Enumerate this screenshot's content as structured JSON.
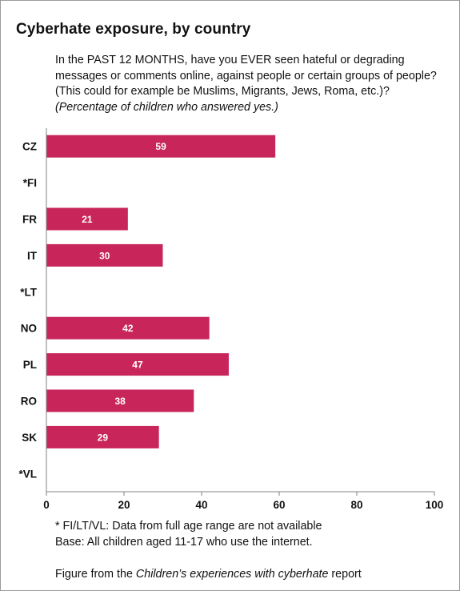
{
  "title": "Cyberhate exposure, by country",
  "question_lines": [
    "In the PAST 12 MONTHS, have you EVER seen hateful or degrading",
    "messages or comments online, against people or certain groups of people?",
    "(This could for example be Muslims, Migrants, Jews, Roma, etc.)?"
  ],
  "question_note": "(Percentage of children who answered yes.)",
  "footnote_lines": [
    "* FI/LT/VL: Data from full age range are not available",
    "Base: All children aged 11-17 who use the internet."
  ],
  "source_prefix": "Figure from the ",
  "source_italic": "Children’s experiences with cyberhate",
  "source_suffix": " report",
  "colors": {
    "bar": "#c8265a",
    "bar_label": "#ffffff",
    "axis": "#808080",
    "text": "#111111"
  },
  "chart_data": {
    "type": "bar",
    "orientation": "horizontal",
    "categories": [
      "CZ",
      "*FI",
      "FR",
      "IT",
      "*LT",
      "NO",
      "PL",
      "RO",
      "SK",
      "*VL"
    ],
    "values": [
      59,
      null,
      21,
      30,
      null,
      42,
      47,
      38,
      29,
      null
    ],
    "data_labels": [
      "59",
      "",
      "21",
      "30",
      "",
      "42",
      "47",
      "38",
      "29",
      ""
    ],
    "xlim": [
      0,
      100
    ],
    "xticks": [
      0,
      20,
      40,
      60,
      80,
      100
    ],
    "xlabel": "",
    "ylabel": "",
    "grid": false,
    "legend": "none"
  }
}
